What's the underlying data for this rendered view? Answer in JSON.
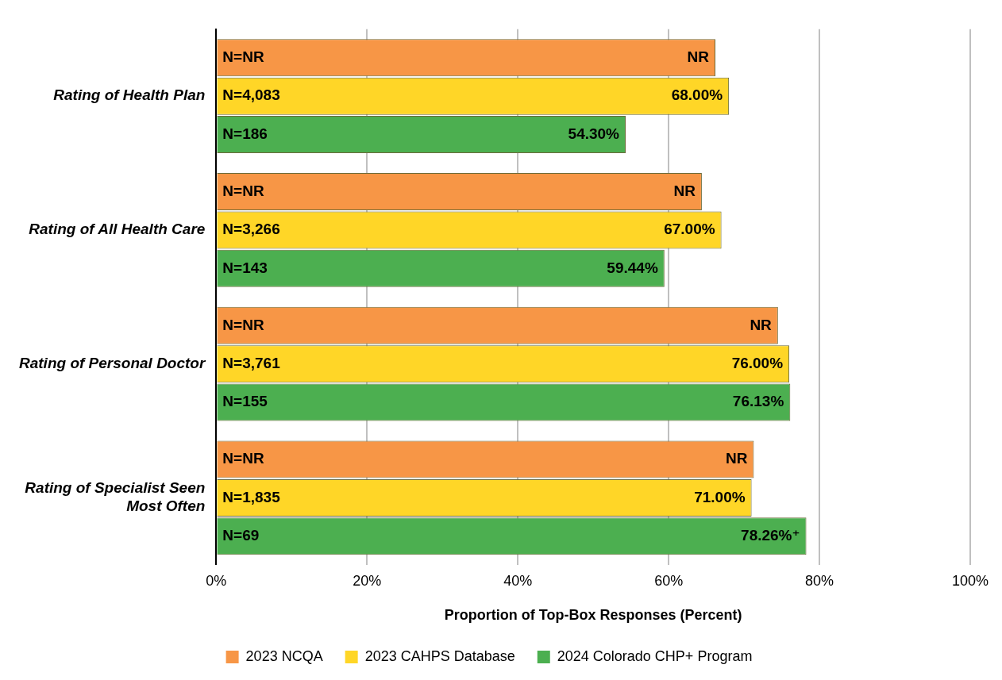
{
  "chart_data": {
    "type": "bar",
    "orientation": "horizontal",
    "xlabel": "Proportion of Top-Box Responses (Percent)",
    "categories": [
      "Rating of Health Plan",
      "Rating of All Health Care",
      "Rating of Personal Doctor",
      "Rating of Specialist Seen Most Often"
    ],
    "series": [
      {
        "name": "2023 NCQA",
        "color": "#f79646",
        "values": [
          66.2,
          64.4,
          74.5,
          71.3
        ],
        "value_labels": [
          "NR",
          "NR",
          "NR",
          "NR"
        ]
      },
      {
        "name": "2023 CAHPS Database",
        "color": "#ffd627",
        "values": [
          68,
          67,
          76,
          71
        ],
        "value_labels": [
          "68.00%",
          "67.00%",
          "76.00%",
          "71.00%"
        ]
      },
      {
        "name": "2024 Colorado CHP+ Program",
        "color": "#4caf50",
        "values": [
          54.3,
          59.44,
          76.13,
          78.26
        ],
        "value_labels": [
          "54.30%",
          "59.44%",
          "76.13%",
          "78.26%⁺"
        ]
      }
    ],
    "annotations": [
      "N=NR",
      "N=4,083",
      "N=186",
      "N=NR",
      "N=3,266",
      "N=143",
      "N=NR",
      "N=3,761",
      "N=155",
      "N=NR",
      "N=1,835",
      "N=69"
    ],
    "xlim": [
      0,
      100
    ],
    "xticks": [
      {
        "value": 0,
        "label": "0%"
      },
      {
        "value": 20,
        "label": "20%"
      },
      {
        "value": 40,
        "label": "40%"
      },
      {
        "value": 60,
        "label": "60%"
      },
      {
        "value": 80,
        "label": "80%"
      },
      {
        "value": 100,
        "label": "100%"
      }
    ],
    "grid": "x",
    "legend": "bottom"
  }
}
